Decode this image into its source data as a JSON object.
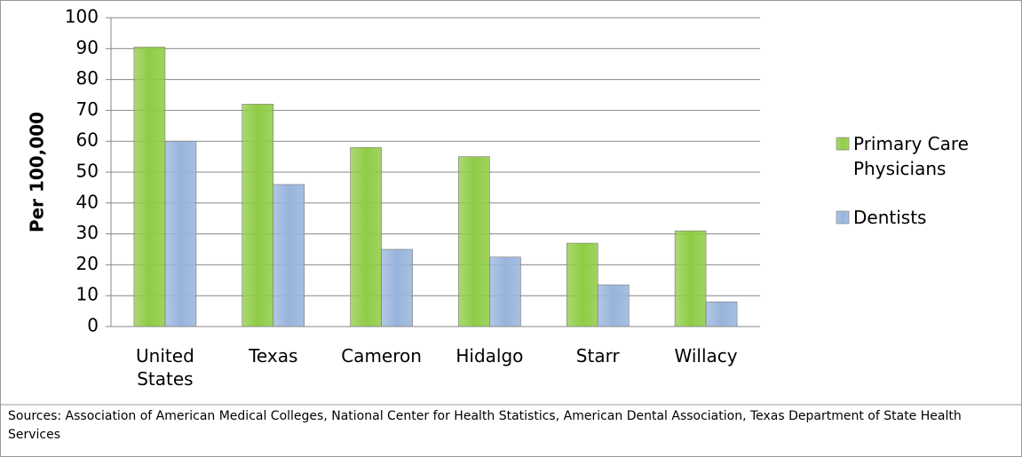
{
  "chart_data": {
    "type": "bar",
    "categories": [
      "United States",
      "Texas",
      "Cameron",
      "Hidalgo",
      "Starr",
      "Willacy"
    ],
    "series": [
      {
        "name": "Primary Care Physicians",
        "color": "#8fcc45",
        "values": [
          90.5,
          72,
          58,
          55,
          27,
          31
        ]
      },
      {
        "name": "Dentists",
        "color": "#98b4dc",
        "values": [
          60,
          46,
          25,
          22.5,
          13.5,
          8
        ]
      }
    ],
    "y_label": "Per 100,000",
    "ylim": [
      0,
      100
    ],
    "yticks": [
      0,
      10,
      20,
      30,
      40,
      50,
      60,
      70,
      80,
      90,
      100
    ],
    "grid": true,
    "legend": "right",
    "source": "Sources:  Association of American Medical Colleges, National Center for Health Statistics, American Dental Association, Texas Department of State Health Services"
  }
}
